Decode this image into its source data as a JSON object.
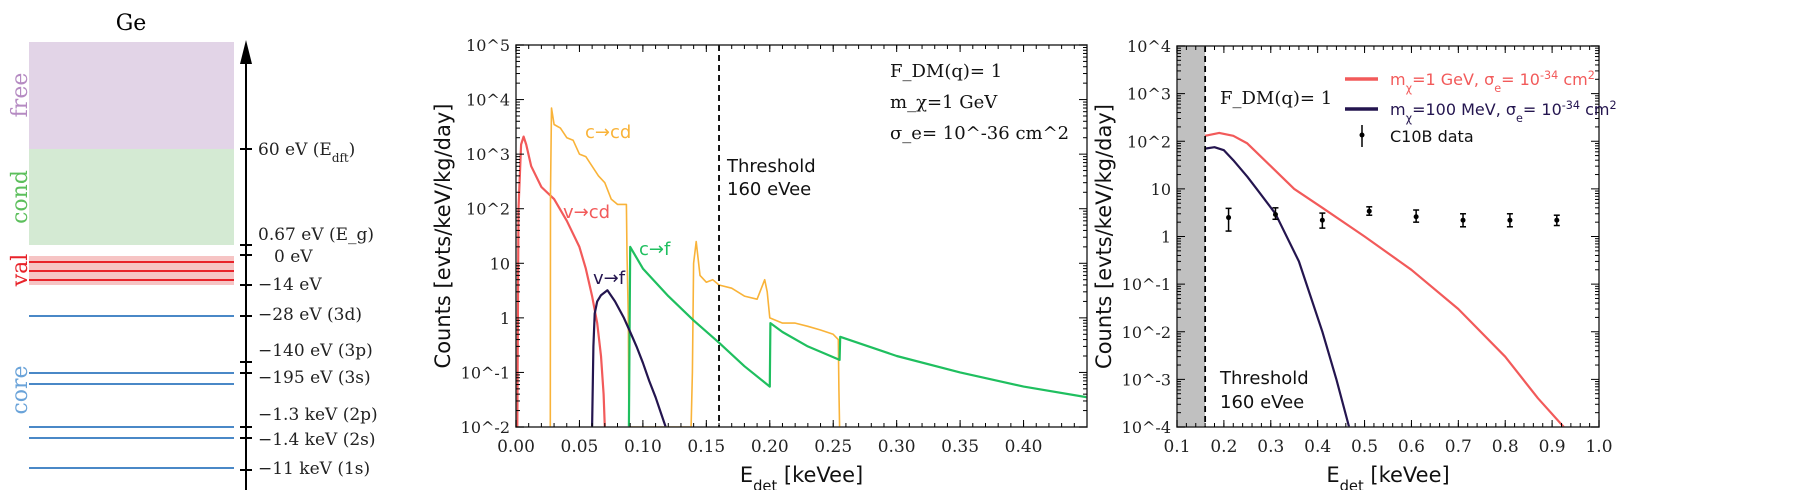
{
  "level_diagram": {
    "title": "Ge",
    "regions": [
      {
        "label": "free",
        "color": "#e2d4e7"
      },
      {
        "label": "cond",
        "color": "#d4ead3"
      },
      {
        "label": "val",
        "color": "#f6c4c4"
      },
      {
        "label": "core",
        "color": "#4a88c7"
      }
    ],
    "region_label_colors": {
      "free": "#b58ac2",
      "cond": "#5cbf5c",
      "val": "#e8232a",
      "core": "#6aa3d9"
    },
    "level_labels": [
      "60 eV (E_dft)",
      "0.67 eV (E_g)",
      "0 eV",
      "−14 eV",
      "−28 eV   (3d)",
      "−140 eV  (3p)",
      "−195 eV  (3s)",
      "−1.3 keV (2p)",
      "−1.4 keV (2s)",
      "−11 keV  (1s)"
    ]
  },
  "chart_data": [
    {
      "type": "line",
      "xlabel": "E_det [keVee]",
      "ylabel": "Counts [evts/keV/kg/day]",
      "xlim": [
        0,
        0.45
      ],
      "ylim": [
        0.01,
        100000
      ],
      "yscale": "log",
      "x_ticks": [
        "0.00",
        "0.05",
        "0.10",
        "0.15",
        "0.20",
        "0.25",
        "0.30",
        "0.35",
        "0.40"
      ],
      "y_ticks": [
        "10^5",
        "10^4",
        "10^3",
        "10^2",
        "10",
        "1",
        "10^-1",
        "10^-2"
      ],
      "annotations": {
        "form_factor": "F_DM(q)= 1",
        "mass": "m_χ=1 GeV",
        "cross_section": "σ_e= 10^-36 cm^2",
        "threshold_line1": "Threshold",
        "threshold_line2": "160 eVee"
      },
      "threshold_x": 0.16,
      "series": [
        {
          "name": "v→cd",
          "color": "#f25a5a",
          "x": [
            0.001,
            0.002,
            0.004,
            0.006,
            0.008,
            0.012,
            0.02,
            0.03,
            0.04,
            0.05,
            0.055,
            0.06,
            0.064,
            0.067,
            0.069,
            0.07
          ],
          "y": [
            0.01,
            100,
            1500,
            2100,
            1500,
            600,
            250,
            150,
            60,
            20,
            8,
            2.5,
            0.8,
            0.2,
            0.04,
            0.01
          ]
        },
        {
          "name": "c→cd",
          "color": "#f9b339",
          "x": [
            0.027,
            0.0272,
            0.028,
            0.03,
            0.035,
            0.04,
            0.045,
            0.05,
            0.055,
            0.06,
            0.065,
            0.07,
            0.075,
            0.08,
            0.087,
            0.0875,
            0.0885,
            0.089,
            0.138,
            0.139,
            0.14,
            0.142,
            0.145,
            0.15,
            0.155,
            0.16,
            0.17,
            0.18,
            0.19,
            0.196,
            0.198,
            0.2,
            0.21,
            0.22,
            0.23,
            0.24,
            0.25,
            0.254,
            0.2545,
            0.255
          ],
          "y": [
            0.01,
            200,
            7000,
            3500,
            3000,
            2000,
            1800,
            1000,
            900,
            600,
            400,
            300,
            150,
            120,
            120,
            15,
            1,
            0.01,
            0.01,
            0.1,
            10,
            25,
            6,
            4.5,
            5,
            4,
            3.5,
            2.5,
            2.2,
            5,
            3,
            1,
            0.8,
            0.8,
            0.7,
            0.6,
            0.5,
            0.4,
            0.05,
            0.01
          ]
        },
        {
          "name": "c→f",
          "color": "#1fbf5f",
          "x": [
            0.089,
            0.09,
            0.1,
            0.12,
            0.14,
            0.16,
            0.18,
            0.2,
            0.2005,
            0.21,
            0.23,
            0.255,
            0.2555,
            0.3,
            0.35,
            0.4,
            0.45
          ],
          "y": [
            0.01,
            20,
            8,
            2.5,
            0.9,
            0.35,
            0.13,
            0.055,
            0.8,
            0.55,
            0.3,
            0.17,
            0.45,
            0.2,
            0.1,
            0.055,
            0.035
          ]
        },
        {
          "name": "v→f",
          "color": "#24154f",
          "x": [
            0.06,
            0.061,
            0.062,
            0.064,
            0.067,
            0.072,
            0.078,
            0.085,
            0.09,
            0.095,
            0.1,
            0.105,
            0.11,
            0.115,
            0.118
          ],
          "y": [
            0.01,
            0.3,
            1.2,
            2,
            2.6,
            3.2,
            2,
            1,
            0.55,
            0.3,
            0.15,
            0.07,
            0.035,
            0.016,
            0.01
          ]
        }
      ]
    },
    {
      "type": "line",
      "xlabel": "E_det [keVee]",
      "ylabel": "Counts [evts/keV/kg/day]",
      "xlim": [
        0.1,
        1.0
      ],
      "ylim": [
        0.0001,
        10000
      ],
      "yscale": "log",
      "x_ticks": [
        "0.1",
        "0.2",
        "0.3",
        "0.4",
        "0.5",
        "0.6",
        "0.7",
        "0.8",
        "0.9",
        "1.0"
      ],
      "y_ticks": [
        "10^4",
        "10^3",
        "10^2",
        "10",
        "1",
        "10^-1",
        "10^-2",
        "10^-3",
        "10^-4"
      ],
      "annotations": {
        "form_factor": "F_DM(q)= 1",
        "threshold_line1": "Threshold",
        "threshold_line2": "160 eVee"
      },
      "threshold_x": 0.16,
      "shaded_region": [
        0.1,
        0.16
      ],
      "legend_position": "top-right",
      "series": [
        {
          "name": "m_χ=1 GeV, σ_e= 10^-34 cm^2",
          "color": "#f25a5a",
          "x": [
            0.16,
            0.19,
            0.22,
            0.25,
            0.3,
            0.35,
            0.41,
            0.5,
            0.6,
            0.7,
            0.8,
            0.87,
            0.925
          ],
          "y": [
            130,
            150,
            130,
            90,
            30,
            10,
            4,
            1,
            0.2,
            0.03,
            0.003,
            0.0004,
            0.0001
          ]
        },
        {
          "name": "m_χ=100 MeV, σ_e= 10^-34 cm^2",
          "color": "#24154f",
          "x": [
            0.16,
            0.18,
            0.2,
            0.22,
            0.25,
            0.27,
            0.31,
            0.36,
            0.41,
            0.44,
            0.467
          ],
          "y": [
            70,
            75,
            65,
            40,
            18,
            10,
            3,
            0.3,
            0.01,
            0.001,
            0.0001
          ]
        },
        {
          "name": "C10B data",
          "type": "errorbar",
          "color": "#000000",
          "x": [
            0.21,
            0.31,
            0.41,
            0.51,
            0.61,
            0.71,
            0.81,
            0.91
          ],
          "y": [
            2.5,
            2.9,
            2.2,
            3.4,
            2.6,
            2.2,
            2.2,
            2.2
          ],
          "y_low": [
            1.3,
            2.3,
            1.5,
            2.8,
            2.0,
            1.6,
            1.6,
            1.7
          ],
          "y_high": [
            3.9,
            4.0,
            3.1,
            4.2,
            3.6,
            3.0,
            3.0,
            2.8
          ]
        }
      ]
    }
  ]
}
